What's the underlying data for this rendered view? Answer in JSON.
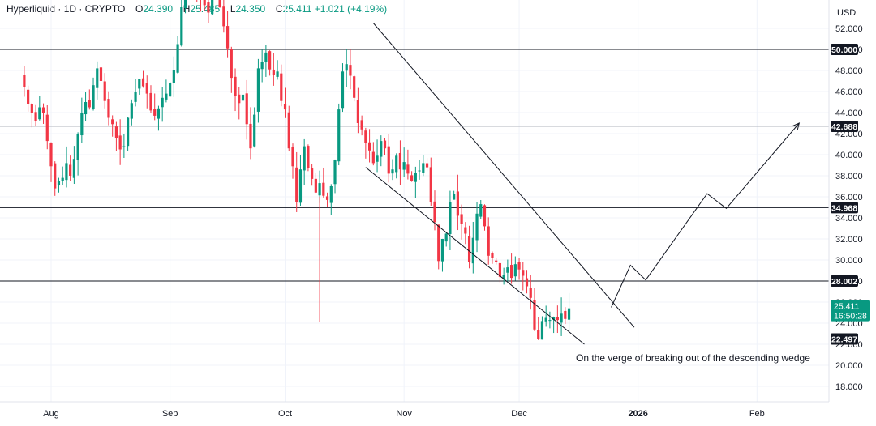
{
  "header": {
    "symbol": "Hyperliquid",
    "interval": "1D",
    "exchange": "CRYPTO",
    "open_label": "O",
    "open": "24.390",
    "high_label": "H",
    "high": "25.485",
    "low_label": "L",
    "low": "24.350",
    "close_label": "C",
    "close": "25.411",
    "change": "+1.021",
    "change_pct": "(+4.19%)"
  },
  "currency": "USD",
  "colors": {
    "up": "#089981",
    "down": "#f23645",
    "line": "#131722",
    "grid": "#e0e3eb",
    "price_tag": "#131722",
    "current_tag": "#089981"
  },
  "annotation": "On the verge of breaking out of the descending wedge",
  "current_price_tag": {
    "price": "25.411",
    "countdown": "16:50:28",
    "value": 25.411
  },
  "chart_data": {
    "type": "candlestick",
    "title": "",
    "xlabel": "",
    "ylabel": "",
    "ylim": [
      17,
      53.5
    ],
    "grid": true,
    "y_ticks": [
      "18.000",
      "20.000",
      "22.000",
      "24.000",
      "26.000",
      "28.000",
      "30.000",
      "32.000",
      "34.000",
      "36.000",
      "38.000",
      "40.000",
      "42.000",
      "44.000",
      "46.000",
      "48.000",
      "50.000",
      "52.000"
    ],
    "x_ticks": [
      {
        "label": "Aug",
        "date": "2025-08-01"
      },
      {
        "label": "Sep",
        "date": "2025-09-01"
      },
      {
        "label": "Oct",
        "date": "2025-10-01"
      },
      {
        "label": "Nov",
        "date": "2025-11-01"
      },
      {
        "label": "Dec",
        "date": "2025-12-01"
      },
      {
        "label": "2026",
        "date": "2026-01-01"
      },
      {
        "label": "Feb",
        "date": "2026-02-01"
      }
    ],
    "levels": [
      {
        "value": 50.0,
        "label": "50.000"
      },
      {
        "value": 42.688,
        "label": "42.688"
      },
      {
        "value": 34.968,
        "label": "34.968"
      },
      {
        "value": 28.002,
        "label": "28.002"
      },
      {
        "value": 22.497,
        "label": "22.497"
      }
    ],
    "wedge_lines": [
      {
        "from": {
          "date": "2025-10-24",
          "price": 52.5
        },
        "to": {
          "date": "2025-12-31",
          "price": 23.6
        }
      },
      {
        "from": {
          "date": "2025-10-22",
          "price": 38.8
        },
        "to": {
          "date": "2025-12-18",
          "price": 22.0
        }
      }
    ],
    "projection": [
      {
        "date": "2025-12-25",
        "price": 25.5
      },
      {
        "date": "2025-12-30",
        "price": 29.5
      },
      {
        "date": "2026-01-03",
        "price": 28.1
      },
      {
        "date": "2026-01-19",
        "price": 36.3
      },
      {
        "date": "2026-01-24",
        "price": 34.9
      },
      {
        "date": "2026-02-12",
        "price": 43.0
      }
    ],
    "candles_start_date": "2025-07-25",
    "candles_close": [
      46.4,
      44.8,
      44.0,
      43.2,
      44.5,
      44.0,
      41.3,
      38.9,
      36.8,
      37.5,
      37.8,
      39.2,
      38.0,
      39.6,
      42.0,
      44.0,
      45.0,
      44.5,
      46.6,
      48.2,
      47.0,
      45.1,
      43.5,
      42.9,
      41.6,
      40.5,
      40.8,
      43.5,
      44.9,
      46.0,
      47.2,
      46.5,
      45.8,
      44.2,
      43.7,
      44.4,
      45.4,
      45.8,
      46.8,
      48.0,
      50.5,
      54.0,
      55.6,
      55.9,
      56.1,
      55.3,
      54.8,
      54.2,
      53.5,
      54.8,
      55.2,
      54.0,
      52.2,
      50.1,
      47.3,
      45.6,
      44.9,
      45.7,
      42.9,
      40.6,
      43.8,
      48.2,
      48.8,
      49.7,
      48.1,
      47.6,
      47.9,
      45.1,
      44.3,
      40.6,
      38.9,
      35.5,
      38.6,
      40.8,
      38.7,
      37.7,
      36.4,
      37.3,
      36.1,
      35.7,
      37.0,
      39.5,
      44.3,
      47.9,
      48.6,
      47.5,
      45.4,
      43.0,
      42.4,
      41.1,
      40.4,
      39.2,
      39.9,
      41.3,
      40.6,
      38.2,
      38.6,
      39.9,
      38.6,
      39.3,
      38.2,
      37.5,
      38.3,
      38.5,
      39.2,
      38.8,
      35.5,
      33.6,
      29.9,
      32.0,
      32.5,
      35.5,
      36.3,
      34.2,
      33.4,
      32.5,
      29.8,
      32.1,
      34.4,
      35.3,
      33.2,
      30.4,
      30.2,
      29.8,
      28.4,
      28.6,
      29.3,
      28.3,
      29.6,
      29.1,
      28.5,
      27.5,
      26.4,
      23.4,
      22.5,
      24.2,
      24.5,
      24.3,
      24.6,
      24.3,
      24.9,
      24.4,
      25.411
    ],
    "volatility_seed": 7
  }
}
